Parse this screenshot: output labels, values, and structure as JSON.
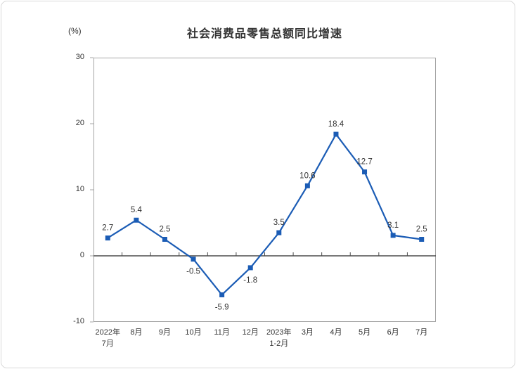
{
  "chart_data": {
    "type": "line",
    "title": "社会消费品零售总额同比增速",
    "unit_label": "(%)",
    "categories": [
      "2022年\n7月",
      "8月",
      "9月",
      "10月",
      "11月",
      "12月",
      "2023年\n1-2月",
      "3月",
      "4月",
      "5月",
      "6月",
      "7月"
    ],
    "values": [
      2.7,
      5.4,
      2.5,
      -0.5,
      -5.9,
      -1.8,
      3.5,
      10.6,
      18.4,
      12.7,
      3.1,
      2.5
    ],
    "data_labels": [
      "2.7",
      "5.4",
      "2.5",
      "-0.5",
      "-5.9",
      "-1.8",
      "3.5",
      "10.6",
      "18.4",
      "12.7",
      "3.1",
      "2.5"
    ],
    "ylim": [
      -10,
      30
    ],
    "ytick_values": [
      30,
      20,
      10,
      0,
      -10
    ],
    "xlabel": "",
    "ylabel": "",
    "grid": false,
    "legend_position": "none",
    "marker_style": "square",
    "show_data_labels": true,
    "colors": {
      "series": "#1B5CB5",
      "text": "#333333",
      "plot_border": "#A6A6A6",
      "zero_axis": "#4D4D4D",
      "card_border": "#D9D9D9",
      "background": "#FFFFFF"
    }
  }
}
